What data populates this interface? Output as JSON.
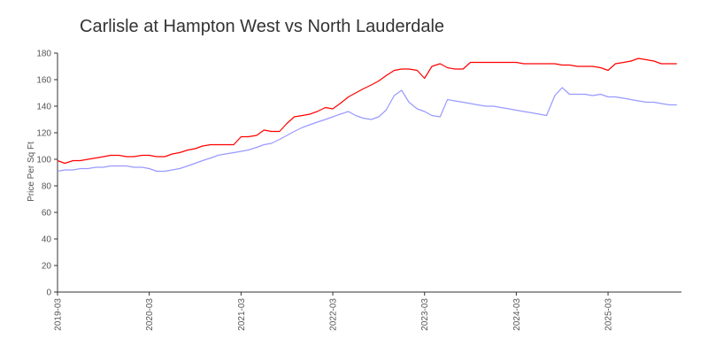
{
  "chart_data": {
    "type": "line",
    "title": "Carlisle at Hampton West vs North Lauderdale",
    "xlabel": "",
    "ylabel": "Price Per Sq Ft",
    "ylim": [
      0,
      180
    ],
    "yticks": [
      0,
      20,
      40,
      60,
      80,
      100,
      120,
      140,
      160,
      180
    ],
    "xlim": [
      2019.0,
      2025.8
    ],
    "xticks": [
      {
        "label": "2019-03",
        "x": 2019.0
      },
      {
        "label": "2020-03",
        "x": 2020.0
      },
      {
        "label": "2021-03",
        "x": 2021.0
      },
      {
        "label": "2022-03",
        "x": 2022.0
      },
      {
        "label": "2023-03",
        "x": 2023.0
      },
      {
        "label": "2024-03",
        "x": 2024.0
      },
      {
        "label": "2025-03",
        "x": 2025.0
      }
    ],
    "grid": false,
    "series": [
      {
        "name": "Carlisle at Hampton West",
        "color": "#ff0000",
        "x": [
          2019.0,
          2019.08,
          2019.17,
          2019.25,
          2019.33,
          2019.42,
          2019.5,
          2019.58,
          2019.67,
          2019.75,
          2019.83,
          2019.92,
          2020.0,
          2020.08,
          2020.17,
          2020.25,
          2020.33,
          2020.42,
          2020.5,
          2020.58,
          2020.67,
          2020.75,
          2020.83,
          2020.92,
          2021.0,
          2021.08,
          2021.17,
          2021.25,
          2021.33,
          2021.42,
          2021.5,
          2021.58,
          2021.67,
          2021.75,
          2021.83,
          2021.92,
          2022.0,
          2022.08,
          2022.17,
          2022.25,
          2022.33,
          2022.42,
          2022.5,
          2022.58,
          2022.67,
          2022.75,
          2022.83,
          2022.92,
          2023.0,
          2023.08,
          2023.17,
          2023.25,
          2023.33,
          2023.42,
          2023.5,
          2023.58,
          2023.67,
          2023.75,
          2023.83,
          2023.92,
          2024.0,
          2024.08,
          2024.17,
          2024.25,
          2024.33,
          2024.42,
          2024.5,
          2024.58,
          2024.67,
          2024.75,
          2024.83,
          2024.92,
          2025.0,
          2025.08,
          2025.17,
          2025.25,
          2025.33,
          2025.42,
          2025.5,
          2025.58,
          2025.67,
          2025.75
        ],
        "values": [
          99,
          97,
          99,
          99,
          100,
          101,
          102,
          103,
          103,
          102,
          102,
          103,
          103,
          102,
          102,
          104,
          105,
          107,
          108,
          110,
          111,
          111,
          111,
          111,
          117,
          117,
          118,
          122,
          121,
          121,
          127,
          132,
          133,
          134,
          136,
          139,
          138,
          142,
          147,
          150,
          153,
          156,
          159,
          163,
          167,
          168,
          168,
          167,
          161,
          170,
          172,
          169,
          168,
          168,
          173,
          173,
          173,
          173,
          173,
          173,
          173,
          172,
          172,
          172,
          172,
          172,
          171,
          171,
          170,
          170,
          170,
          169,
          167,
          172,
          173,
          174,
          176,
          175,
          174,
          172,
          172,
          172
        ]
      },
      {
        "name": "North Lauderdale",
        "color": "#9999ff",
        "x": [
          2019.0,
          2019.08,
          2019.17,
          2019.25,
          2019.33,
          2019.42,
          2019.5,
          2019.58,
          2019.67,
          2019.75,
          2019.83,
          2019.92,
          2020.0,
          2020.08,
          2020.17,
          2020.25,
          2020.33,
          2020.42,
          2020.5,
          2020.58,
          2020.67,
          2020.75,
          2020.83,
          2020.92,
          2021.0,
          2021.08,
          2021.17,
          2021.25,
          2021.33,
          2021.42,
          2021.5,
          2021.58,
          2021.67,
          2021.75,
          2021.83,
          2021.92,
          2022.0,
          2022.08,
          2022.17,
          2022.25,
          2022.33,
          2022.42,
          2022.5,
          2022.58,
          2022.67,
          2022.75,
          2022.83,
          2022.92,
          2023.0,
          2023.08,
          2023.17,
          2023.25,
          2023.33,
          2023.42,
          2023.5,
          2023.58,
          2023.67,
          2023.75,
          2023.83,
          2023.92,
          2024.0,
          2024.08,
          2024.17,
          2024.25,
          2024.33,
          2024.42,
          2024.5,
          2024.58,
          2024.67,
          2024.75,
          2024.83,
          2024.92,
          2025.0,
          2025.08,
          2025.17,
          2025.25,
          2025.33,
          2025.42,
          2025.5,
          2025.58,
          2025.67,
          2025.75
        ],
        "values": [
          91,
          92,
          92,
          93,
          93,
          94,
          94,
          95,
          95,
          95,
          94,
          94,
          93,
          91,
          91,
          92,
          93,
          95,
          97,
          99,
          101,
          103,
          104,
          105,
          106,
          107,
          109,
          111,
          112,
          115,
          118,
          121,
          124,
          126,
          128,
          130,
          132,
          134,
          136,
          133,
          131,
          130,
          132,
          137,
          148,
          152,
          143,
          138,
          136,
          133,
          132,
          145,
          144,
          143,
          142,
          141,
          140,
          140,
          139,
          138,
          137,
          136,
          135,
          134,
          133,
          148,
          154,
          149,
          149,
          149,
          148,
          149,
          147,
          147,
          146,
          145,
          144,
          143,
          143,
          142,
          141,
          141
        ]
      }
    ]
  }
}
